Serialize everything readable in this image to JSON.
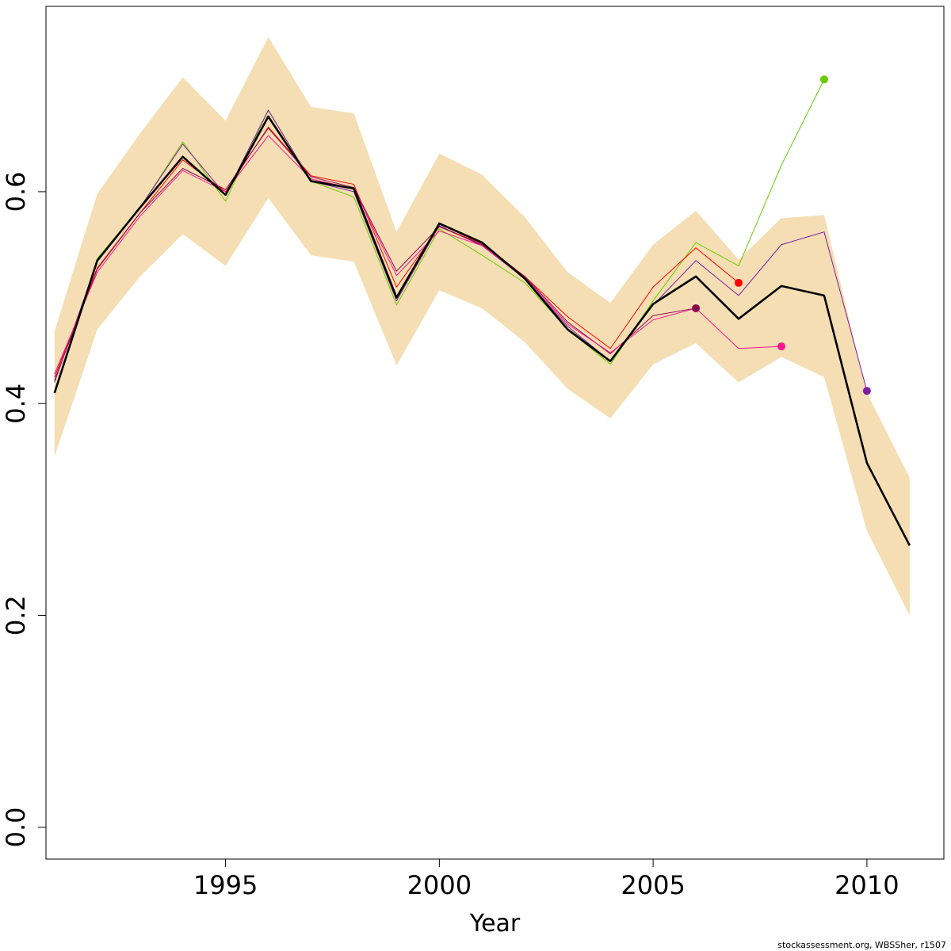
{
  "chart_data": {
    "type": "line",
    "title": "",
    "xlabel": "Year",
    "ylabel": "",
    "xlim": [
      1990.8,
      2011.8
    ],
    "ylim": [
      -0.03,
      0.775
    ],
    "x_ticks": [
      1995,
      2000,
      2005,
      2010
    ],
    "y_ticks": [
      0.0,
      0.2,
      0.4,
      0.6
    ],
    "y_tick_labels": [
      "0.0",
      "0.2",
      "0.4",
      "0.6"
    ],
    "grid": false,
    "footnote": "stockassessment.org, WBSSher, r1507",
    "colors": {
      "band": "#f5deb3",
      "main": "#000000",
      "green": "#66cc00",
      "purple": "#7a1fa2",
      "red": "#ff0000",
      "magenta": "#8b0a50",
      "pink": "#ff1493"
    },
    "band": {
      "x": [
        1991,
        1992,
        1993,
        1994,
        1995,
        1996,
        1997,
        1998,
        1999,
        2000,
        2001,
        2002,
        2003,
        2004,
        2005,
        2006,
        2007,
        2008,
        2009,
        2010,
        2011
      ],
      "lower": [
        0.35,
        0.47,
        0.52,
        0.56,
        0.53,
        0.594,
        0.54,
        0.534,
        0.436,
        0.507,
        0.49,
        0.458,
        0.414,
        0.386,
        0.437,
        0.457,
        0.42,
        0.444,
        0.425,
        0.28,
        0.2
      ],
      "upper": [
        0.468,
        0.598,
        0.655,
        0.708,
        0.667,
        0.746,
        0.68,
        0.674,
        0.562,
        0.636,
        0.616,
        0.576,
        0.524,
        0.495,
        0.55,
        0.582,
        0.536,
        0.575,
        0.578,
        0.41,
        0.33
      ]
    },
    "series": [
      {
        "color": "#66cc00",
        "x": [
          1991,
          1992,
          1993,
          1994,
          1995,
          1996,
          1997,
          1998,
          1999,
          2000,
          2001,
          2002,
          2003,
          2004,
          2005,
          2006,
          2007,
          2008,
          2009
        ],
        "values": [
          0.41,
          0.537,
          0.585,
          0.647,
          0.591,
          0.677,
          0.61,
          0.595,
          0.493,
          0.565,
          0.54,
          0.514,
          0.47,
          0.437,
          0.497,
          0.552,
          0.53,
          0.625,
          0.706
        ],
        "end_marker": true
      },
      {
        "color": "#7a1fa2",
        "x": [
          1991,
          1992,
          1993,
          1994,
          1995,
          1996,
          1997,
          1998,
          1999,
          2000,
          2001,
          2002,
          2003,
          2004,
          2005,
          2006,
          2007,
          2008,
          2009,
          2010
        ],
        "values": [
          0.42,
          0.534,
          0.585,
          0.645,
          0.597,
          0.677,
          0.61,
          0.6,
          0.497,
          0.568,
          0.549,
          0.518,
          0.473,
          0.44,
          0.493,
          0.535,
          0.502,
          0.55,
          0.562,
          0.412
        ],
        "end_marker": true
      },
      {
        "color": "#ff0000",
        "x": [
          1991,
          1992,
          1993,
          1994,
          1995,
          1996,
          1997,
          1998,
          1999,
          2000,
          2001,
          2002,
          2003,
          2004,
          2005,
          2006,
          2007
        ],
        "values": [
          0.425,
          0.528,
          0.58,
          0.63,
          0.6,
          0.661,
          0.615,
          0.607,
          0.51,
          0.567,
          0.551,
          0.52,
          0.482,
          0.452,
          0.51,
          0.547,
          0.514
        ],
        "end_marker": true
      },
      {
        "color": "#8b0a50",
        "x": [
          1991,
          1992,
          1993,
          1994,
          1995,
          1996,
          1997,
          1998,
          1999,
          2000,
          2001,
          2002,
          2003,
          2004,
          2005,
          2006
        ],
        "values": [
          0.422,
          0.527,
          0.58,
          0.622,
          0.602,
          0.66,
          0.614,
          0.604,
          0.525,
          0.567,
          0.55,
          0.52,
          0.477,
          0.447,
          0.483,
          0.49
        ],
        "end_marker": true
      },
      {
        "color": "#ff1493",
        "x": [
          1991,
          1992,
          1993,
          1994,
          1995,
          1996,
          1997,
          1998,
          1999,
          2000,
          2001,
          2002,
          2003,
          2004,
          2005,
          2006,
          2007,
          2008
        ],
        "values": [
          0.428,
          0.524,
          0.577,
          0.62,
          0.6,
          0.653,
          0.612,
          0.603,
          0.521,
          0.563,
          0.549,
          0.519,
          0.475,
          0.448,
          0.479,
          0.49,
          0.452,
          0.454
        ],
        "end_marker": true
      },
      {
        "color": "#000000",
        "x": [
          1991,
          1992,
          1993,
          1994,
          1995,
          1996,
          1997,
          1998,
          1999,
          2000,
          2001,
          2002,
          2003,
          2004,
          2005,
          2006,
          2007,
          2008,
          2009,
          2010,
          2011
        ],
        "values": [
          0.41,
          0.535,
          0.585,
          0.633,
          0.597,
          0.671,
          0.61,
          0.603,
          0.5,
          0.57,
          0.552,
          0.518,
          0.47,
          0.44,
          0.494,
          0.52,
          0.48,
          0.511,
          0.502,
          0.344,
          0.266
        ],
        "end_marker": false,
        "bold": true
      }
    ]
  }
}
